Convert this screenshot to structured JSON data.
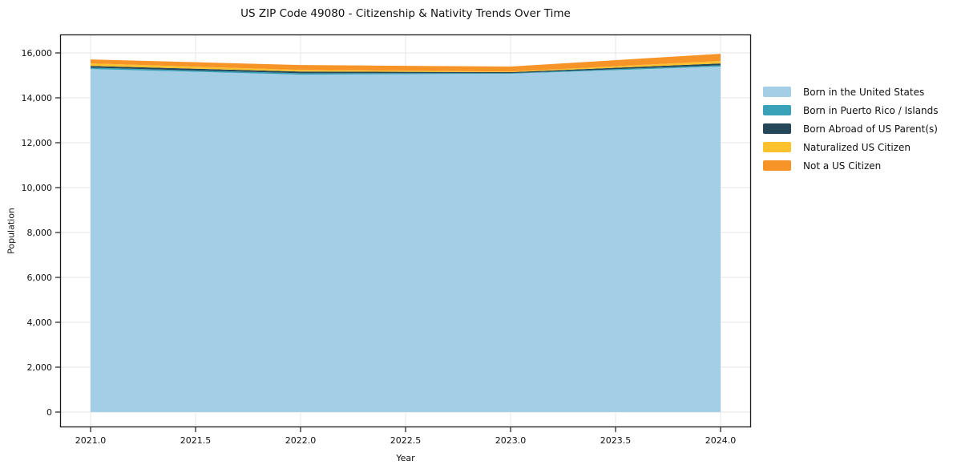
{
  "chart_data": {
    "type": "area",
    "stacked": true,
    "title": "US ZIP Code 49080 - Citizenship & Nativity Trends Over Time",
    "xlabel": "Year",
    "ylabel": "Population",
    "x": [
      2021,
      2022,
      2023,
      2024
    ],
    "series": [
      {
        "name": "Born in the United States",
        "color": "#a3cee5",
        "values": [
          15280,
          15030,
          15070,
          15390
        ]
      },
      {
        "name": "Born in Puerto Rico / Islands",
        "color": "#3aa2b8",
        "values": [
          60,
          60,
          30,
          60
        ]
      },
      {
        "name": "Born Abroad of US Parent(s)",
        "color": "#24475a",
        "values": [
          80,
          80,
          40,
          80
        ]
      },
      {
        "name": "Naturalized US Citizen",
        "color": "#fcc22d",
        "values": [
          110,
          70,
          30,
          110
        ]
      },
      {
        "name": "Not a US Citizen",
        "color": "#f79428",
        "values": [
          180,
          220,
          220,
          320
        ]
      }
    ],
    "totals": [
      15710,
      15460,
      15390,
      15960
    ],
    "xlim": [
      2020.855,
      2024.145
    ],
    "ylim": [
      -680,
      16820
    ],
    "xtick_values": [
      2021.0,
      2021.5,
      2022.0,
      2022.5,
      2023.0,
      2023.5,
      2024.0
    ],
    "xtick_labels": [
      "2021.0",
      "2021.5",
      "2022.0",
      "2022.5",
      "2023.0",
      "2023.5",
      "2024.0"
    ],
    "ytick_values": [
      0,
      2000,
      4000,
      6000,
      8000,
      10000,
      12000,
      14000,
      16000
    ],
    "ytick_labels": [
      "0",
      "2,000",
      "4,000",
      "6,000",
      "8,000",
      "10,000",
      "12,000",
      "14,000",
      "16,000"
    ],
    "grid": true,
    "legend_position": "right",
    "colors": {
      "grid": "#e7e7e7",
      "spine": "#1a1a1a",
      "tick": "#1a1a1a",
      "text": "#111111",
      "background": "#ffffff"
    }
  }
}
